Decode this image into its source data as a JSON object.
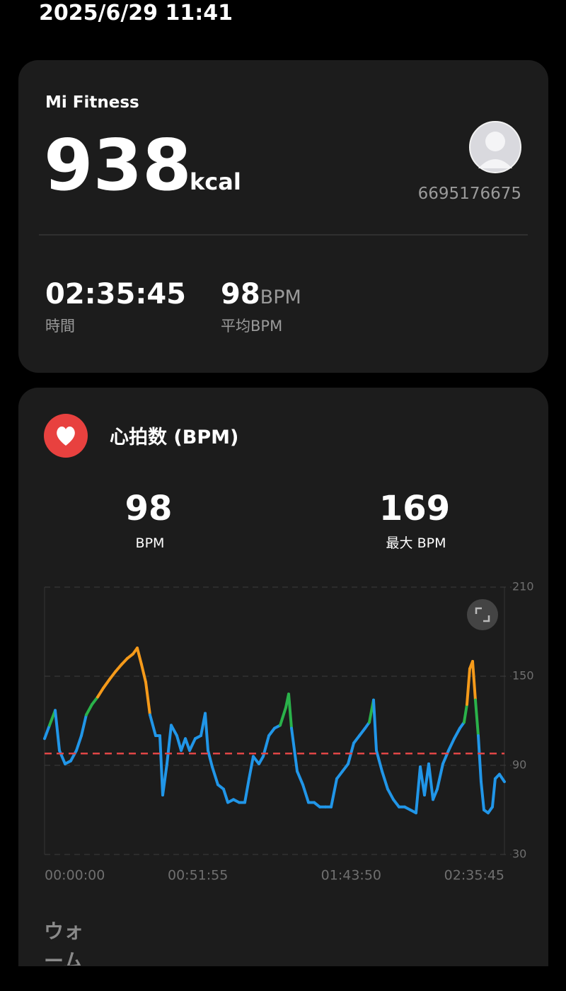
{
  "status_time": "2025/6/29 11:41",
  "summary": {
    "app": "Mi Fitness",
    "calories": 938,
    "calories_unit": "kcal",
    "user_id": "6695176675",
    "duration": "02:35:45",
    "duration_label": "時間",
    "avg_bpm": 98,
    "avg_bpm_unit": "BPM",
    "avg_bpm_label": "平均BPM"
  },
  "heart_rate": {
    "title": "心拍数 (BPM)",
    "avg": 98,
    "avg_unit": "BPM",
    "max": 169,
    "max_label": "最大 BPM"
  },
  "chart_data": {
    "type": "line",
    "x": [
      0,
      101,
      216,
      302,
      417,
      532,
      647,
      748,
      848,
      963,
      1078,
      1193,
      1323,
      1438,
      1567,
      1682,
      1797,
      1883,
      1969,
      2056,
      2142,
      2257,
      2343,
      2401,
      2487,
      2573,
      2688,
      2775,
      2861,
      2947,
      3062,
      3177,
      3264,
      3321,
      3407,
      3522,
      3637,
      3724,
      3839,
      3954,
      4069,
      4155,
      4241,
      4356,
      4443,
      4558,
      4673,
      4788,
      4903,
      4960,
      5018,
      5133,
      5248,
      5363,
      5478,
      5593,
      5708,
      5823,
      5938,
      6053,
      6168,
      6283,
      6398,
      6513,
      6599,
      6685,
      6743,
      6858,
      6973,
      7088,
      7203,
      7318,
      7433,
      7548,
      7634,
      7720,
      7807,
      7893,
      7979,
      8094,
      8209,
      8324,
      8439,
      8525,
      8583,
      8640,
      8698,
      8755,
      8813,
      8870,
      8928,
      9014,
      9100,
      9157,
      9243,
      9345
    ],
    "series": [
      {
        "color": "#2196e8",
        "values": [
          108,
          117,
          127,
          100,
          91,
          93,
          100,
          110,
          124,
          131,
          136,
          142,
          148,
          153,
          158,
          162,
          165,
          169,
          158,
          146,
          124,
          110,
          110,
          70,
          91,
          117,
          110,
          100,
          108,
          100,
          108,
          110,
          125,
          100,
          89,
          77,
          74,
          65,
          67,
          65,
          65,
          81,
          96,
          91,
          96,
          110,
          115,
          117,
          129,
          138,
          115,
          86,
          77,
          65,
          65,
          62,
          62,
          62,
          81,
          86,
          91,
          105,
          110,
          115,
          119,
          134,
          100,
          86,
          74,
          67,
          62,
          62,
          60,
          58,
          89,
          70,
          91,
          67,
          74,
          91,
          100,
          108,
          115,
          119,
          131,
          155,
          160,
          134,
          110,
          79,
          60,
          58,
          62,
          81,
          84,
          79
        ]
      }
    ],
    "zones": [
      {
        "from": 119,
        "color": "#2ab24a"
      },
      {
        "from": 134,
        "color": "#f59a1a"
      }
    ],
    "reference_color": "#e04646",
    "xlim": [
      0,
      9345
    ],
    "xticks": [
      {
        "value": 0,
        "label": "00:00:00"
      },
      {
        "value": 3115,
        "label": "00:51:55"
      },
      {
        "value": 6230,
        "label": "01:43:50"
      },
      {
        "value": 9345,
        "label": "02:35:45"
      }
    ],
    "ylim": [
      30,
      210
    ],
    "yticks": [
      30,
      90,
      150,
      210
    ],
    "grid": true
  },
  "next_section": "ウォーム"
}
